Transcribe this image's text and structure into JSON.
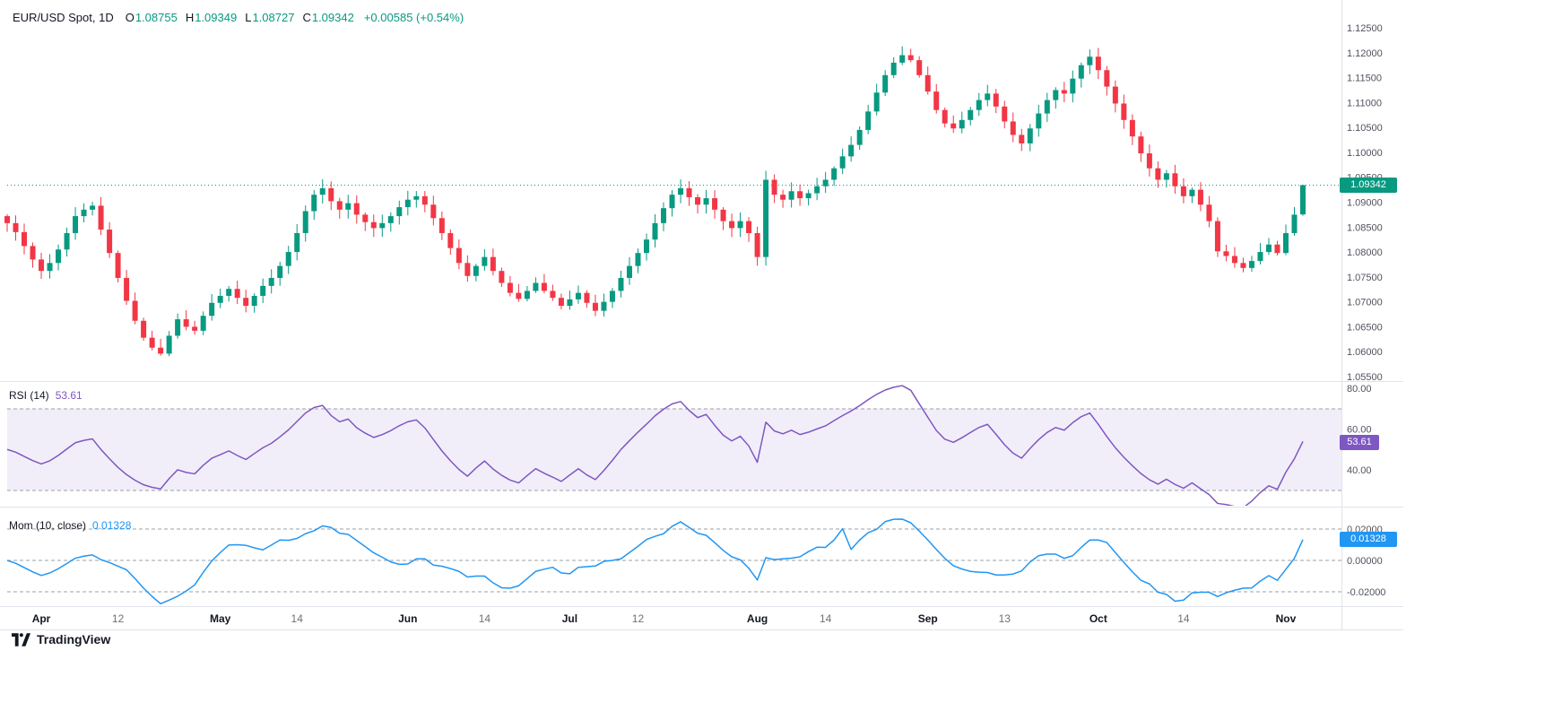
{
  "header": {
    "symbol": "EUR/USD Spot, 1D",
    "ohlc": [
      {
        "key": "O",
        "value": "1.08755"
      },
      {
        "key": "H",
        "value": "1.09349"
      },
      {
        "key": "L",
        "value": "1.08727"
      },
      {
        "key": "C",
        "value": "1.09342"
      }
    ],
    "change": "+0.00585 (+0.54%)"
  },
  "rsi_label": {
    "title": "RSI (14)",
    "value": "53.61"
  },
  "mom_label": {
    "title": "Mom (10, close)",
    "value": "0.01328"
  },
  "badges": {
    "price": "1.09342",
    "rsi": "53.61",
    "mom": "0.01328"
  },
  "watermark": "TradingView",
  "colors": {
    "up": "#089981",
    "down": "#f23645",
    "rsi": "#7e57c2",
    "rsi_band": "rgba(126,87,194,0.10)",
    "mom": "#2196f3",
    "axis_text": "#50535e",
    "separator": "#e0e3eb",
    "level_dash": "#9aa0a6",
    "month_text": "#131722",
    "day_text": "#6e7178"
  },
  "chart_data": {
    "type": "candlestick",
    "symbol": "EUR/USD Spot",
    "interval": "1D",
    "last_ohlc": {
      "open": 1.08755,
      "high": 1.09349,
      "low": 1.08727,
      "close": 1.09342
    },
    "change": {
      "abs": 0.00585,
      "pct": 0.54
    },
    "current_price": 1.09342,
    "closes": [
      1.0858,
      1.084,
      1.0812,
      1.0785,
      1.0762,
      1.0778,
      1.0805,
      1.0838,
      1.0872,
      1.0885,
      1.0893,
      1.0845,
      1.0798,
      1.0748,
      1.0702,
      1.0662,
      1.0628,
      1.0608,
      1.0596,
      1.0632,
      1.0665,
      1.065,
      1.0642,
      1.0672,
      1.0698,
      1.0712,
      1.0726,
      1.0708,
      1.0692,
      1.0712,
      1.0732,
      1.0748,
      1.0772,
      1.08,
      1.0838,
      1.0882,
      1.0915,
      1.0928,
      1.0902,
      1.0885,
      1.0898,
      1.0875,
      1.086,
      1.0848,
      1.0858,
      1.0872,
      1.089,
      1.0905,
      1.0912,
      1.0895,
      1.0868,
      1.0838,
      1.0808,
      1.0778,
      1.0752,
      1.0772,
      1.079,
      1.0762,
      1.0738,
      1.0718,
      1.0706,
      1.0722,
      1.0738,
      1.0722,
      1.0708,
      1.0692,
      1.0705,
      1.0718,
      1.0698,
      1.0682,
      1.07,
      1.0722,
      1.0748,
      1.0772,
      1.0798,
      1.0825,
      1.0858,
      1.0888,
      1.0915,
      1.0928,
      1.091,
      1.0895,
      1.0908,
      1.0885,
      1.0862,
      1.0848,
      1.0862,
      1.0838,
      1.079,
      1.0945,
      1.0915,
      1.0905,
      1.0922,
      1.0908,
      1.0918,
      1.0932,
      1.0945,
      1.0968,
      1.0992,
      1.1015,
      1.1045,
      1.1082,
      1.112,
      1.1155,
      1.118,
      1.1195,
      1.1185,
      1.1155,
      1.1122,
      1.1085,
      1.1058,
      1.1048,
      1.1065,
      1.1085,
      1.1105,
      1.1118,
      1.1092,
      1.1062,
      1.1035,
      1.1018,
      1.1048,
      1.1078,
      1.1105,
      1.1125,
      1.1118,
      1.1148,
      1.1175,
      1.1192,
      1.1165,
      1.1132,
      1.1098,
      1.1065,
      1.1032,
      1.0998,
      1.0968,
      1.0945,
      1.0958,
      1.0932,
      1.0912,
      1.0925,
      1.0895,
      1.0862,
      1.08014,
      1.0792,
      1.0778,
      1.0768,
      1.0782,
      1.08,
      1.0815,
      1.0798,
      1.0838,
      1.0875,
      1.09342
    ],
    "price_axis": {
      "min": 1.055,
      "max": 1.125,
      "tick_labels": [
        "1.12500",
        "1.12000",
        "1.11500",
        "1.11000",
        "1.10500",
        "1.10000",
        "1.09500",
        "1.09000",
        "1.08500",
        "1.08000",
        "1.07500",
        "1.07000",
        "1.06500",
        "1.06000",
        "1.05500"
      ]
    },
    "time_ticks": [
      {
        "label": "Apr",
        "index": 4,
        "major": true
      },
      {
        "label": "12",
        "index": 13,
        "major": false
      },
      {
        "label": "May",
        "index": 25,
        "major": true
      },
      {
        "label": "14",
        "index": 34,
        "major": false
      },
      {
        "label": "Jun",
        "index": 47,
        "major": true
      },
      {
        "label": "14",
        "index": 56,
        "major": false
      },
      {
        "label": "Jul",
        "index": 66,
        "major": true
      },
      {
        "label": "12",
        "index": 74,
        "major": false
      },
      {
        "label": "Aug",
        "index": 88,
        "major": true
      },
      {
        "label": "14",
        "index": 96,
        "major": false
      },
      {
        "label": "Sep",
        "index": 108,
        "major": true
      },
      {
        "label": "13",
        "index": 117,
        "major": false
      },
      {
        "label": "Oct",
        "index": 128,
        "major": true
      },
      {
        "label": "14",
        "index": 138,
        "major": false
      },
      {
        "label": "Nov",
        "index": 150,
        "major": true
      }
    ],
    "indicators": [
      {
        "name": "RSI",
        "period": 14,
        "value": 53.61,
        "color": "#7e57c2",
        "band": [
          30,
          70
        ],
        "axis_ticks": [
          {
            "label": "80.00",
            "value": 80
          },
          {
            "label": "60.00",
            "value": 60
          },
          {
            "label": "40.00",
            "value": 40
          }
        ]
      },
      {
        "name": "Momentum",
        "period": 10,
        "source": "close",
        "value": 0.01328,
        "color": "#2196f3",
        "levels": [
          0.02,
          0,
          -0.02
        ],
        "axis_ticks": [
          {
            "label": "0.02000",
            "value": 0.02
          },
          {
            "label": "0.00000",
            "value": 0
          },
          {
            "label": "-0.02000",
            "value": -0.02
          }
        ]
      }
    ]
  }
}
